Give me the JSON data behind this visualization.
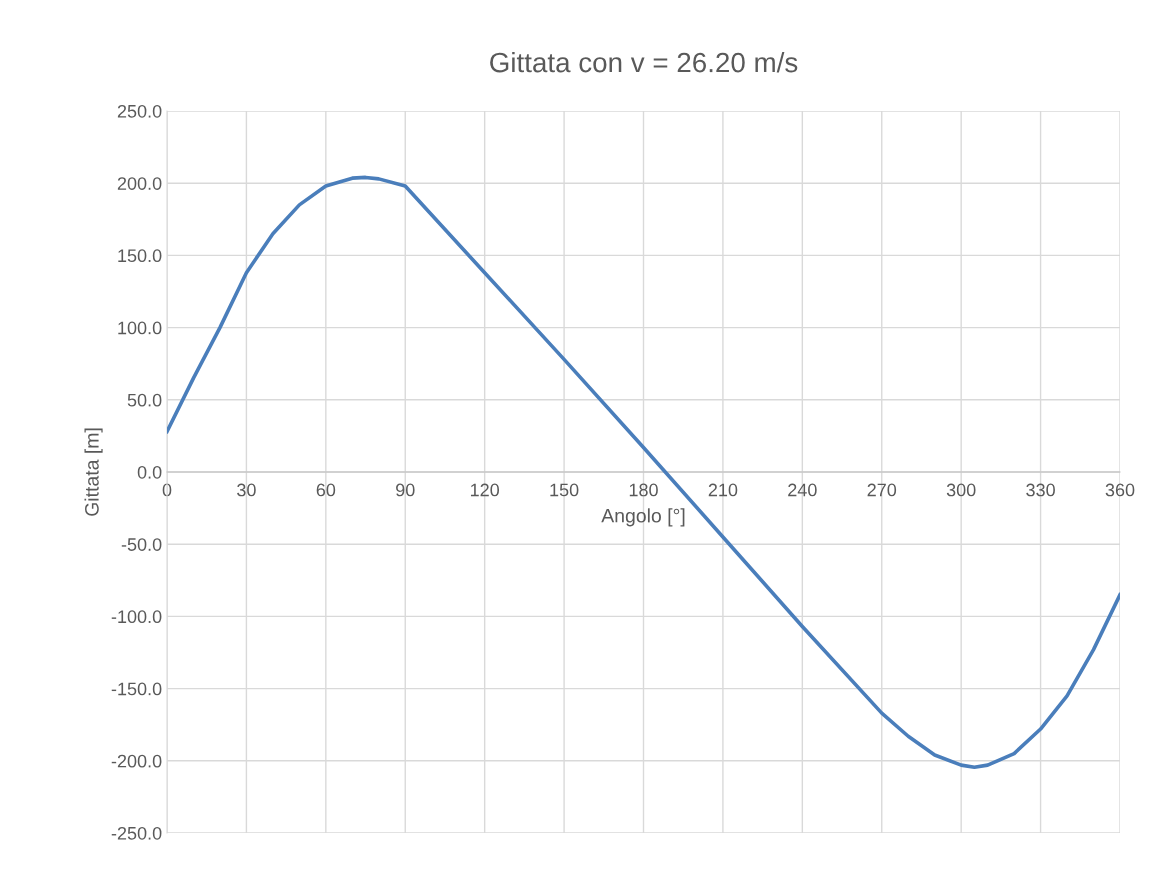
{
  "chart_data": {
    "type": "line",
    "title": "Gittata con v = 26.20 m/s",
    "xlabel": "Angolo [°]",
    "ylabel": "Gittata [m]",
    "x": [
      0,
      10,
      20,
      30,
      40,
      50,
      60,
      70,
      75,
      80,
      90,
      120,
      150,
      180,
      210,
      240,
      270,
      280,
      290,
      300,
      305,
      310,
      320,
      330,
      340,
      350,
      360
    ],
    "series": [
      {
        "color": "#4a7ebb",
        "values": [
          28,
          65,
          100,
          138,
          165,
          185,
          198,
          203.5,
          204,
          203,
          198,
          138,
          78,
          17,
          -45,
          -107,
          -167,
          -183,
          -196,
          -203,
          -204.5,
          -203,
          -195,
          -178,
          -155,
          -123,
          -85
        ]
      }
    ],
    "xlim": [
      0,
      360
    ],
    "xticks": [
      0,
      30,
      60,
      90,
      120,
      150,
      180,
      210,
      240,
      270,
      300,
      330,
      360
    ],
    "ylim": [
      -250,
      250
    ],
    "yticks": [
      {
        "value": -250,
        "label": "-250.0"
      },
      {
        "value": -200,
        "label": "-200.0"
      },
      {
        "value": -150,
        "label": "-150.0"
      },
      {
        "value": -100,
        "label": "-100.0"
      },
      {
        "value": -50,
        "label": "-50.0"
      },
      {
        "value": 0,
        "label": "0.0"
      },
      {
        "value": 50,
        "label": "50.0"
      },
      {
        "value": 100,
        "label": "100.0"
      },
      {
        "value": 150,
        "label": "150.0"
      },
      {
        "value": 200,
        "label": "200.0"
      },
      {
        "value": 250,
        "label": "250.0"
      }
    ],
    "grid": true,
    "marker": "none",
    "line_style": "solid",
    "legend": false
  }
}
